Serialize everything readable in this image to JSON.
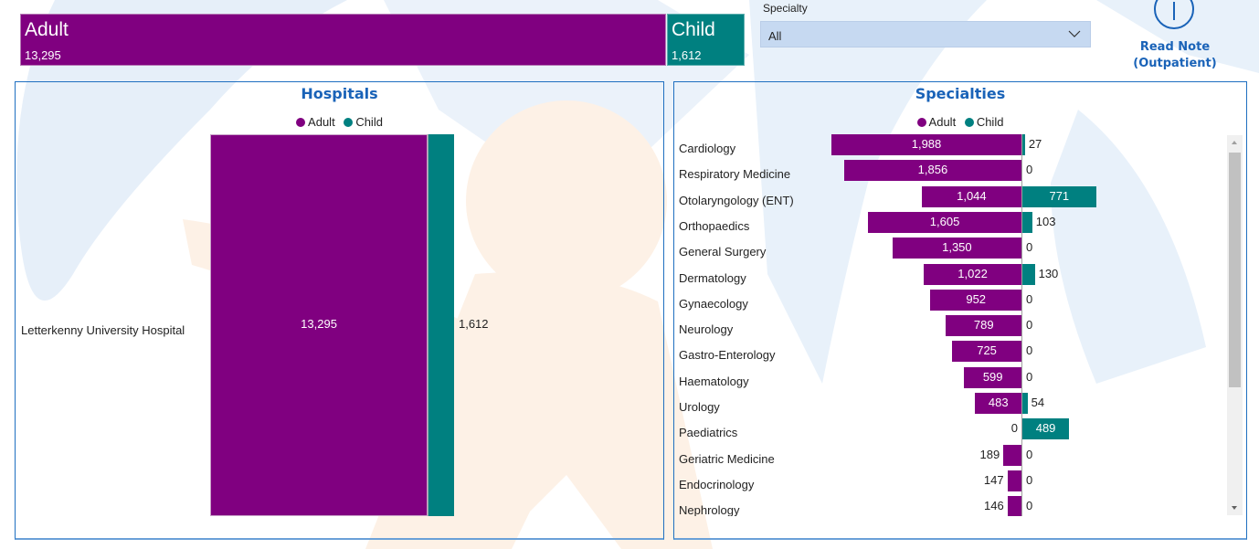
{
  "colors": {
    "adult": "#800080",
    "child": "#008080",
    "accent": "#1a63b8"
  },
  "kpi": {
    "adult": {
      "label": "Adult",
      "value": "13,295"
    },
    "child": {
      "label": "Child",
      "value": "1,612"
    }
  },
  "slicer": {
    "label": "Specialty",
    "selected": "All",
    "icon": "chevron-down-icon"
  },
  "info_button": {
    "icon": "info-icon",
    "line1": "Read Note",
    "line2": "(Outpatient)"
  },
  "chart_data": [
    {
      "type": "bar",
      "orientation": "horizontal-stacked",
      "title": "Hospitals",
      "legend": [
        "Adult",
        "Child"
      ],
      "legend_position": "top-center",
      "categories": [
        "Letterkenny University Hospital"
      ],
      "series": [
        {
          "name": "Adult",
          "values": [
            13295
          ],
          "labels": [
            "13,295"
          ]
        },
        {
          "name": "Child",
          "values": [
            1612
          ],
          "labels": [
            "1,612"
          ]
        }
      ]
    },
    {
      "type": "bar",
      "orientation": "horizontal-diverging",
      "title": "Specialties",
      "legend": [
        "Adult",
        "Child"
      ],
      "legend_position": "top-center",
      "categories": [
        "Cardiology",
        "Respiratory Medicine",
        "Otolaryngology (ENT)",
        "Orthopaedics",
        "General Surgery",
        "Dermatology",
        "Gynaecology",
        "Neurology",
        "Gastro-Enterology",
        "Haematology",
        "Urology",
        "Paediatrics",
        "Geriatric Medicine",
        "Endocrinology",
        "Nephrology"
      ],
      "series": [
        {
          "name": "Adult",
          "values": [
            1988,
            1856,
            1044,
            1605,
            1350,
            1022,
            952,
            789,
            725,
            599,
            483,
            0,
            189,
            147,
            146
          ],
          "labels": [
            "1,988",
            "1,856",
            "1,044",
            "1,605",
            "1,350",
            "1,022",
            "952",
            "789",
            "725",
            "599",
            "483",
            "0",
            "189",
            "147",
            "146"
          ]
        },
        {
          "name": "Child",
          "values": [
            27,
            0,
            771,
            103,
            0,
            130,
            0,
            0,
            0,
            0,
            54,
            489,
            0,
            0,
            0
          ],
          "labels": [
            "27",
            "0",
            "771",
            "103",
            "0",
            "130",
            "0",
            "0",
            "0",
            "0",
            "54",
            "489",
            "0",
            "0",
            "0"
          ]
        }
      ],
      "scrollable": true
    }
  ]
}
